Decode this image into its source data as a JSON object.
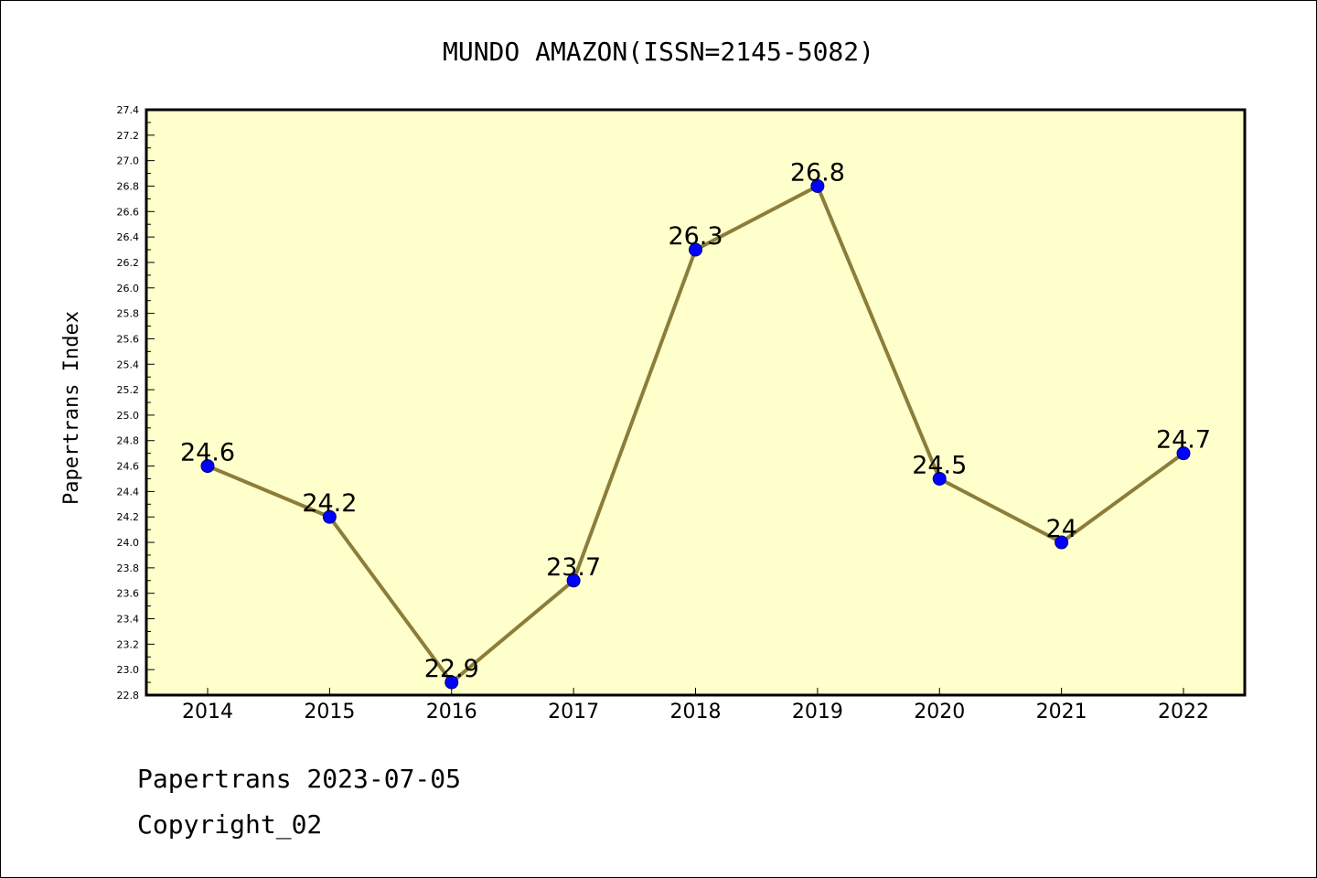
{
  "chart_data": {
    "type": "line",
    "title": "MUNDO AMAZON(ISSN=2145-5082)",
    "xlabel": "",
    "ylabel": "Papertrans Index",
    "categories": [
      "2014",
      "2015",
      "2016",
      "2017",
      "2018",
      "2019",
      "2020",
      "2021",
      "2022"
    ],
    "values": [
      24.6,
      24.2,
      22.9,
      23.7,
      26.3,
      26.8,
      24.5,
      24.0,
      24.7
    ],
    "data_labels": [
      "24.6",
      "24.2",
      "22.9",
      "23.7",
      "26.3",
      "26.8",
      "24.5",
      "24",
      "24.7"
    ],
    "ylim": [
      22.8,
      27.4
    ],
    "y_major_step": 0.2,
    "y_tick_labels": [
      "22.8",
      "23.0",
      "23.2",
      "23.4",
      "23.6",
      "23.8",
      "24.0",
      "24.2",
      "24.4",
      "24.6",
      "24.8",
      "25.0",
      "25.2",
      "25.4",
      "25.6",
      "25.8",
      "26.0",
      "26.2",
      "26.4",
      "26.6",
      "26.8",
      "27.0",
      "27.2",
      "27.4"
    ],
    "grid": false,
    "legend": "none",
    "colors": {
      "plot_background": "#ffffcc",
      "line": "#8b7d3a",
      "marker_fill": "#0000ff",
      "marker_edge": "#000080"
    }
  },
  "footer": {
    "date_line": "Papertrans 2023-07-05",
    "copyright": "Copyright_02"
  }
}
